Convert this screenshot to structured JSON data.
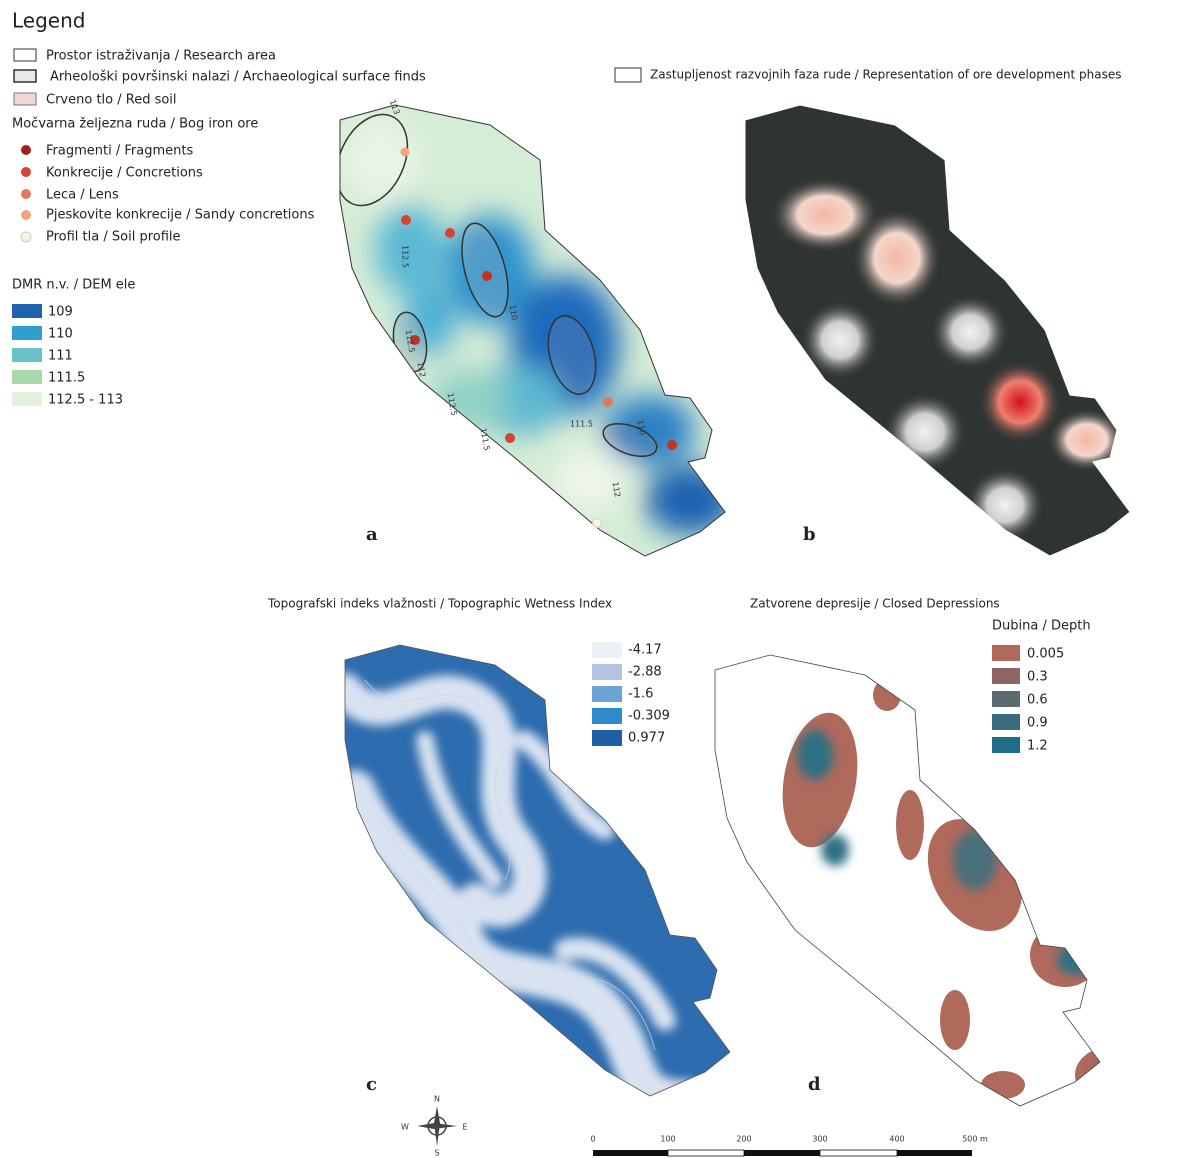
{
  "legend": {
    "title": "Legend",
    "areas": [
      "Prostor istraživanja / Research area",
      "Arheološki površinski nalazi / Archaeological surface finds",
      "Crveno tlo / Red soil"
    ],
    "ore_heading": "Močvarna željezna ruda / Bog iron ore",
    "ore_items": [
      "Fragmenti / Fragments",
      "Konkrecije / Concretions",
      "Leca /  Lens",
      "Pjeskovite konkrecije / Sandy concretions",
      "Profil tla / Soil profile"
    ],
    "dem_heading": "DMR n.v. / DEM ele",
    "dem_classes": [
      "109",
      "110",
      "111",
      "111.5",
      "112.5 - 113"
    ]
  },
  "panel_a": {
    "label": "a",
    "contour_labels": [
      "113",
      "112.5",
      "110",
      "112.5",
      "112",
      "112.5",
      "111.5",
      "111.5",
      "112",
      "110"
    ]
  },
  "panel_b": {
    "label": "b",
    "legend": "Zastupljenost razvojnih faza rude / Representation of ore development phases"
  },
  "panel_c": {
    "label": "c",
    "title": "Topografski indeks vlažnosti / Topographic Wetness Index",
    "classes": [
      "-4.17",
      "-2.88",
      "-1.6",
      "-0.309",
      "0.977"
    ]
  },
  "panel_d": {
    "label": "d",
    "title": "Zatvorene depresije / Closed Depressions",
    "subtitle": "Dubina / Depth",
    "classes": [
      "0.005",
      "0.3",
      "0.6",
      "0.9",
      "1.2"
    ]
  },
  "compass": [
    "N",
    "E",
    "S",
    "W"
  ],
  "scale_bar": [
    "0",
    "100",
    "200",
    "300",
    "400",
    "500 m"
  ]
}
